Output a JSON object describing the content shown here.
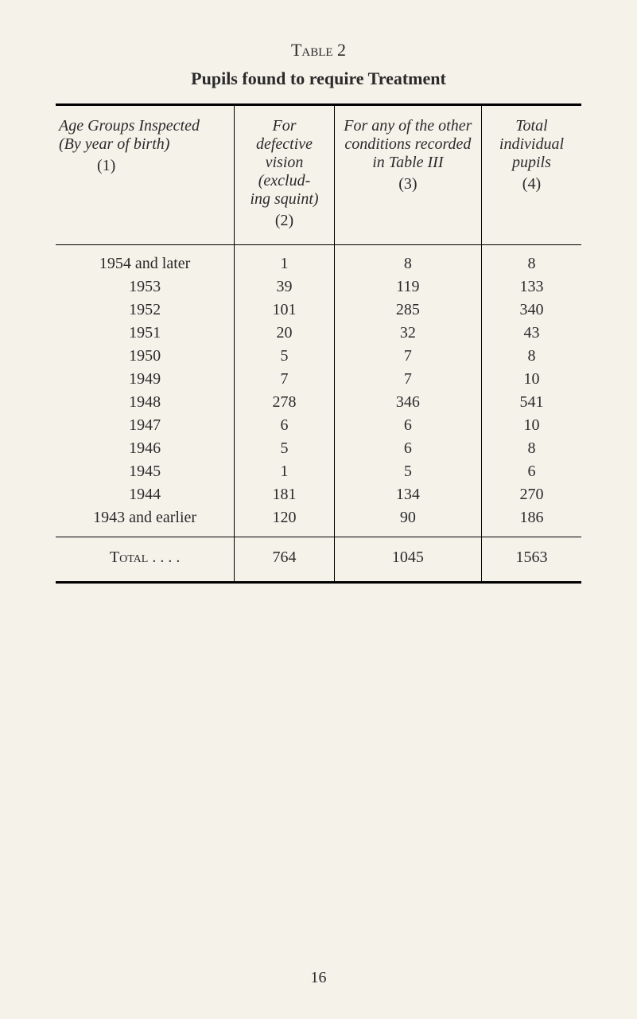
{
  "table": {
    "label": "Table 2",
    "title": "Pupils found to require Treatment",
    "headers": {
      "col1_line1": "Age Groups Inspected",
      "col1_line2": "(By year of birth)",
      "col1_num": "(1)",
      "col2_line1": "For defective",
      "col2_line2": "vision (exclud-",
      "col2_line3": "ing squint)",
      "col2_num": "(2)",
      "col3_line1": "For any of the other",
      "col3_line2": "conditions recorded",
      "col3_line3": "in Table III",
      "col3_num": "(3)",
      "col4_line1": "Total",
      "col4_line2": "individual",
      "col4_line3": "pupils",
      "col4_num": "(4)"
    },
    "rows": [
      {
        "label": "1954 and later",
        "v2": "1",
        "v3": "8",
        "v4": "8"
      },
      {
        "label": "1953",
        "v2": "39",
        "v3": "119",
        "v4": "133"
      },
      {
        "label": "1952",
        "v2": "101",
        "v3": "285",
        "v4": "340"
      },
      {
        "label": "1951",
        "v2": "20",
        "v3": "32",
        "v4": "43"
      },
      {
        "label": "1950",
        "v2": "5",
        "v3": "7",
        "v4": "8"
      },
      {
        "label": "1949",
        "v2": "7",
        "v3": "7",
        "v4": "10"
      },
      {
        "label": "1948",
        "v2": "278",
        "v3": "346",
        "v4": "541"
      },
      {
        "label": "1947",
        "v2": "6",
        "v3": "6",
        "v4": "10"
      },
      {
        "label": "1946",
        "v2": "5",
        "v3": "6",
        "v4": "8"
      },
      {
        "label": "1945",
        "v2": "1",
        "v3": "5",
        "v4": "6"
      },
      {
        "label": "1944",
        "v2": "181",
        "v3": "134",
        "v4": "270"
      },
      {
        "label": "1943 and earlier",
        "v2": "120",
        "v3": "90",
        "v4": "186"
      }
    ],
    "total": {
      "label": "Total . .      . .",
      "v2": "764",
      "v3": "1045",
      "v4": "1563"
    }
  },
  "page_number": "16"
}
